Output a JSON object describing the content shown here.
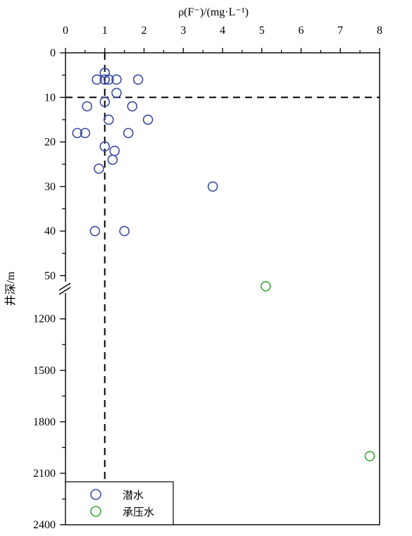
{
  "chart_data": {
    "type": "scatter",
    "x_axis": {
      "label": "ρ(F⁻)/(mg·L⁻¹)",
      "range": [
        0,
        8
      ],
      "ticks": [
        "0",
        "1",
        "2",
        "3",
        "4",
        "5",
        "6",
        "7",
        "8"
      ],
      "position": "top"
    },
    "y_axis": {
      "label": "井深/m",
      "inverted": true,
      "broken": true,
      "upper_segment": {
        "range": [
          0,
          52
        ],
        "ticks": [
          "0",
          "10",
          "20",
          "30",
          "40",
          "50"
        ]
      },
      "lower_segment": {
        "range": [
          1000,
          2400
        ],
        "ticks": [
          "1200",
          "1500",
          "1800",
          "2100",
          "2400"
        ]
      }
    },
    "reference_lines": {
      "x": 1,
      "y": 10,
      "style": "dashed"
    },
    "legend_position": "bottom-left",
    "series": [
      {
        "name": "潜水",
        "color": "#3a4aa0",
        "points": [
          {
            "x": 1.0,
            "y": 4.5
          },
          {
            "x": 0.8,
            "y": 6
          },
          {
            "x": 1.0,
            "y": 6
          },
          {
            "x": 1.1,
            "y": 6
          },
          {
            "x": 1.3,
            "y": 6
          },
          {
            "x": 1.85,
            "y": 6
          },
          {
            "x": 1.3,
            "y": 9
          },
          {
            "x": 1.0,
            "y": 11
          },
          {
            "x": 0.55,
            "y": 12
          },
          {
            "x": 1.7,
            "y": 12
          },
          {
            "x": 1.1,
            "y": 15
          },
          {
            "x": 2.1,
            "y": 15
          },
          {
            "x": 0.3,
            "y": 18
          },
          {
            "x": 0.5,
            "y": 18
          },
          {
            "x": 1.6,
            "y": 18
          },
          {
            "x": 1.0,
            "y": 21
          },
          {
            "x": 1.25,
            "y": 22
          },
          {
            "x": 1.2,
            "y": 24
          },
          {
            "x": 0.85,
            "y": 26
          },
          {
            "x": 3.75,
            "y": 30
          },
          {
            "x": 0.75,
            "y": 40
          },
          {
            "x": 1.5,
            "y": 40
          }
        ]
      },
      {
        "name": "承压水",
        "color": "#3aa83a",
        "points": [
          {
            "x": 5.1,
            "y": 1010
          },
          {
            "x": 7.75,
            "y": 2000
          }
        ]
      }
    ]
  }
}
